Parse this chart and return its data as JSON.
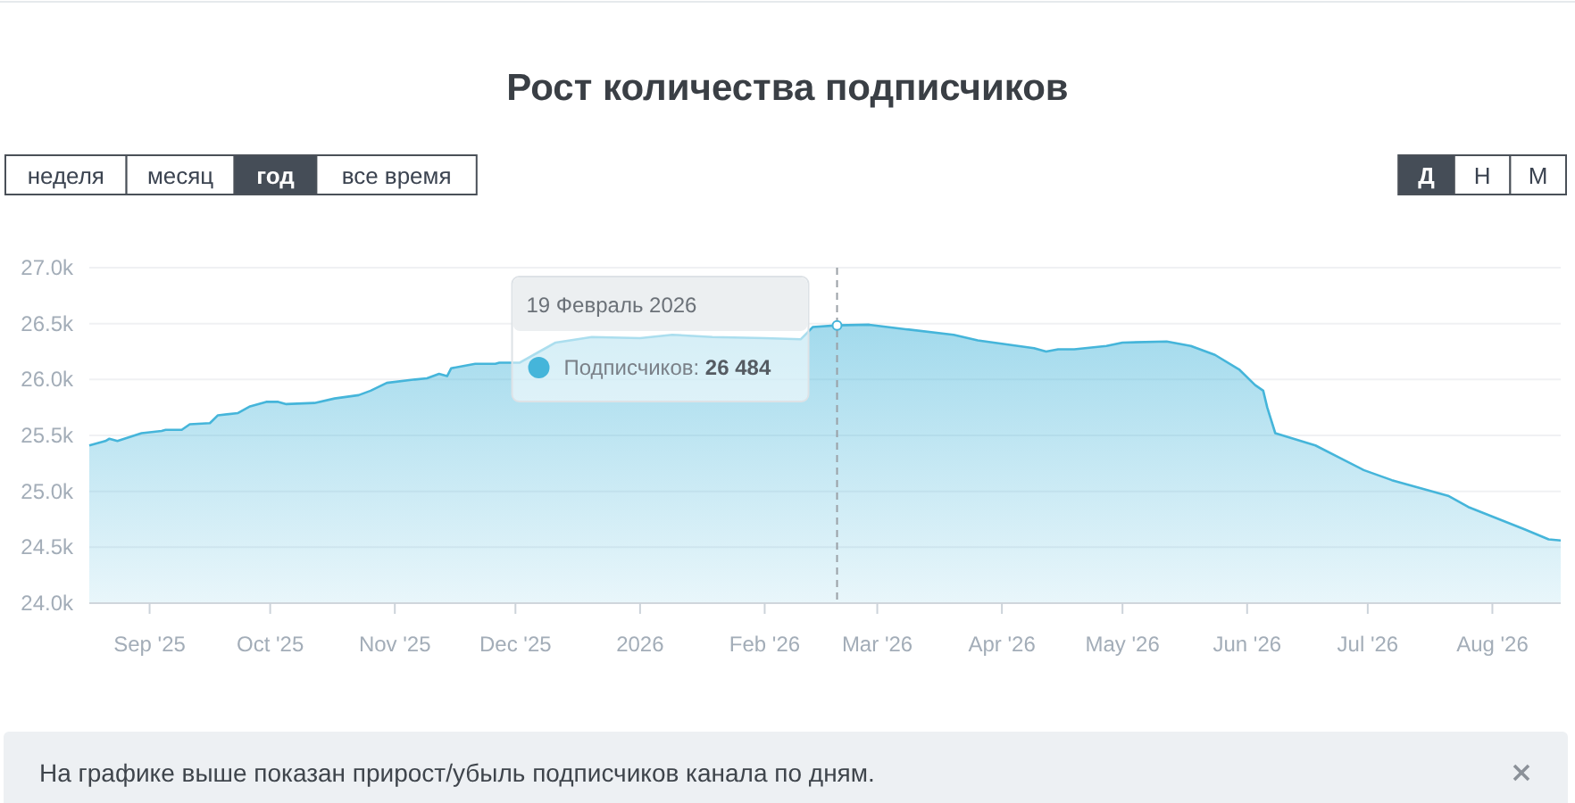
{
  "chart_data": {
    "type": "area",
    "title": "Рост количества подписчиков",
    "x": [
      "2025-08-17",
      "2025-08-21",
      "2025-08-22",
      "2025-08-24",
      "2025-08-30",
      "2025-09-04",
      "2025-09-05",
      "2025-09-09",
      "2025-09-11",
      "2025-09-16",
      "2025-09-18",
      "2025-09-23",
      "2025-09-26",
      "2025-09-30",
      "2025-10-03",
      "2025-10-05",
      "2025-10-12",
      "2025-10-17",
      "2025-10-23",
      "2025-10-26",
      "2025-10-30",
      "2025-11-06",
      "2025-11-09",
      "2025-11-12",
      "2025-11-14",
      "2025-11-15",
      "2025-11-18",
      "2025-11-21",
      "2025-11-26",
      "2025-11-27",
      "2025-12-02",
      "2025-12-07",
      "2025-12-11",
      "2025-12-20",
      "2026-01-01",
      "2026-01-09",
      "2026-01-19",
      "2026-02-01",
      "2026-02-10",
      "2026-02-13",
      "2026-02-19",
      "2026-02-27",
      "2026-03-08",
      "2026-03-20",
      "2026-03-26",
      "2026-04-05",
      "2026-04-09",
      "2026-04-12",
      "2026-04-15",
      "2026-04-19",
      "2026-04-27",
      "2026-05-01",
      "2026-05-12",
      "2026-05-18",
      "2026-05-24",
      "2026-05-30",
      "2026-06-03",
      "2026-06-05",
      "2026-06-06",
      "2026-06-08",
      "2026-06-18",
      "2026-06-30",
      "2026-07-07",
      "2026-07-15",
      "2026-07-21",
      "2026-07-26",
      "2026-08-02",
      "2026-08-09",
      "2026-08-15",
      "2026-08-18"
    ],
    "values": [
      25410,
      25450,
      25470,
      25450,
      25520,
      25540,
      25550,
      25550,
      25600,
      25610,
      25680,
      25700,
      25760,
      25800,
      25800,
      25780,
      25790,
      25830,
      25860,
      25900,
      25970,
      26000,
      26010,
      26050,
      26030,
      26100,
      26120,
      26140,
      26140,
      26150,
      26150,
      26250,
      26330,
      26380,
      26370,
      26400,
      26380,
      26370,
      26360,
      26470,
      26484,
      26490,
      26450,
      26400,
      26350,
      26300,
      26280,
      26250,
      26270,
      26270,
      26300,
      26330,
      26340,
      26300,
      26220,
      26090,
      25950,
      25900,
      25750,
      25520,
      25410,
      25190,
      25100,
      25020,
      24960,
      24860,
      24760,
      24660,
      24570,
      24560
    ],
    "color": "#45b5da",
    "xlim": [
      "2025-08-17",
      "2026-08-18"
    ],
    "xticks": [
      {
        "value": "2025-09-01",
        "label": "Sep '25"
      },
      {
        "value": "2025-10-01",
        "label": "Oct '25"
      },
      {
        "value": "2025-11-01",
        "label": "Nov '25"
      },
      {
        "value": "2025-12-01",
        "label": "Dec '25"
      },
      {
        "value": "2026-01-01",
        "label": "2026"
      },
      {
        "value": "2026-02-01",
        "label": "Feb '26"
      },
      {
        "value": "2026-03-01",
        "label": "Mar '26"
      },
      {
        "value": "2026-04-01",
        "label": "Apr '26"
      },
      {
        "value": "2026-05-01",
        "label": "May '26"
      },
      {
        "value": "2026-06-01",
        "label": "Jun '26"
      },
      {
        "value": "2026-07-01",
        "label": "Jul '26"
      },
      {
        "value": "2026-08-01",
        "label": "Aug '26"
      }
    ],
    "ylim": [
      24000,
      27000
    ],
    "yticks": [
      {
        "value": 24000,
        "label": "24.0k"
      },
      {
        "value": 24500,
        "label": "24.5k"
      },
      {
        "value": 25000,
        "label": "25.0k"
      },
      {
        "value": 25500,
        "label": "25.5k"
      },
      {
        "value": 26000,
        "label": "26.0k"
      },
      {
        "value": 26500,
        "label": "26.5k"
      },
      {
        "value": 27000,
        "label": "27.0k"
      }
    ],
    "grid": "y",
    "ref_lines": [
      {
        "axis": "x",
        "value": "2026-02-19",
        "color": "#9aa0a6",
        "line_style": "dashed"
      }
    ],
    "annotations": [
      "19 Февраль 2026",
      "Подписчиков: 26 484",
      "неделя",
      "месяц",
      "год",
      "все время",
      "Д",
      "Н",
      "М",
      "На графике выше показан прирост/убыль подписчиков канала по дням."
    ]
  }
}
